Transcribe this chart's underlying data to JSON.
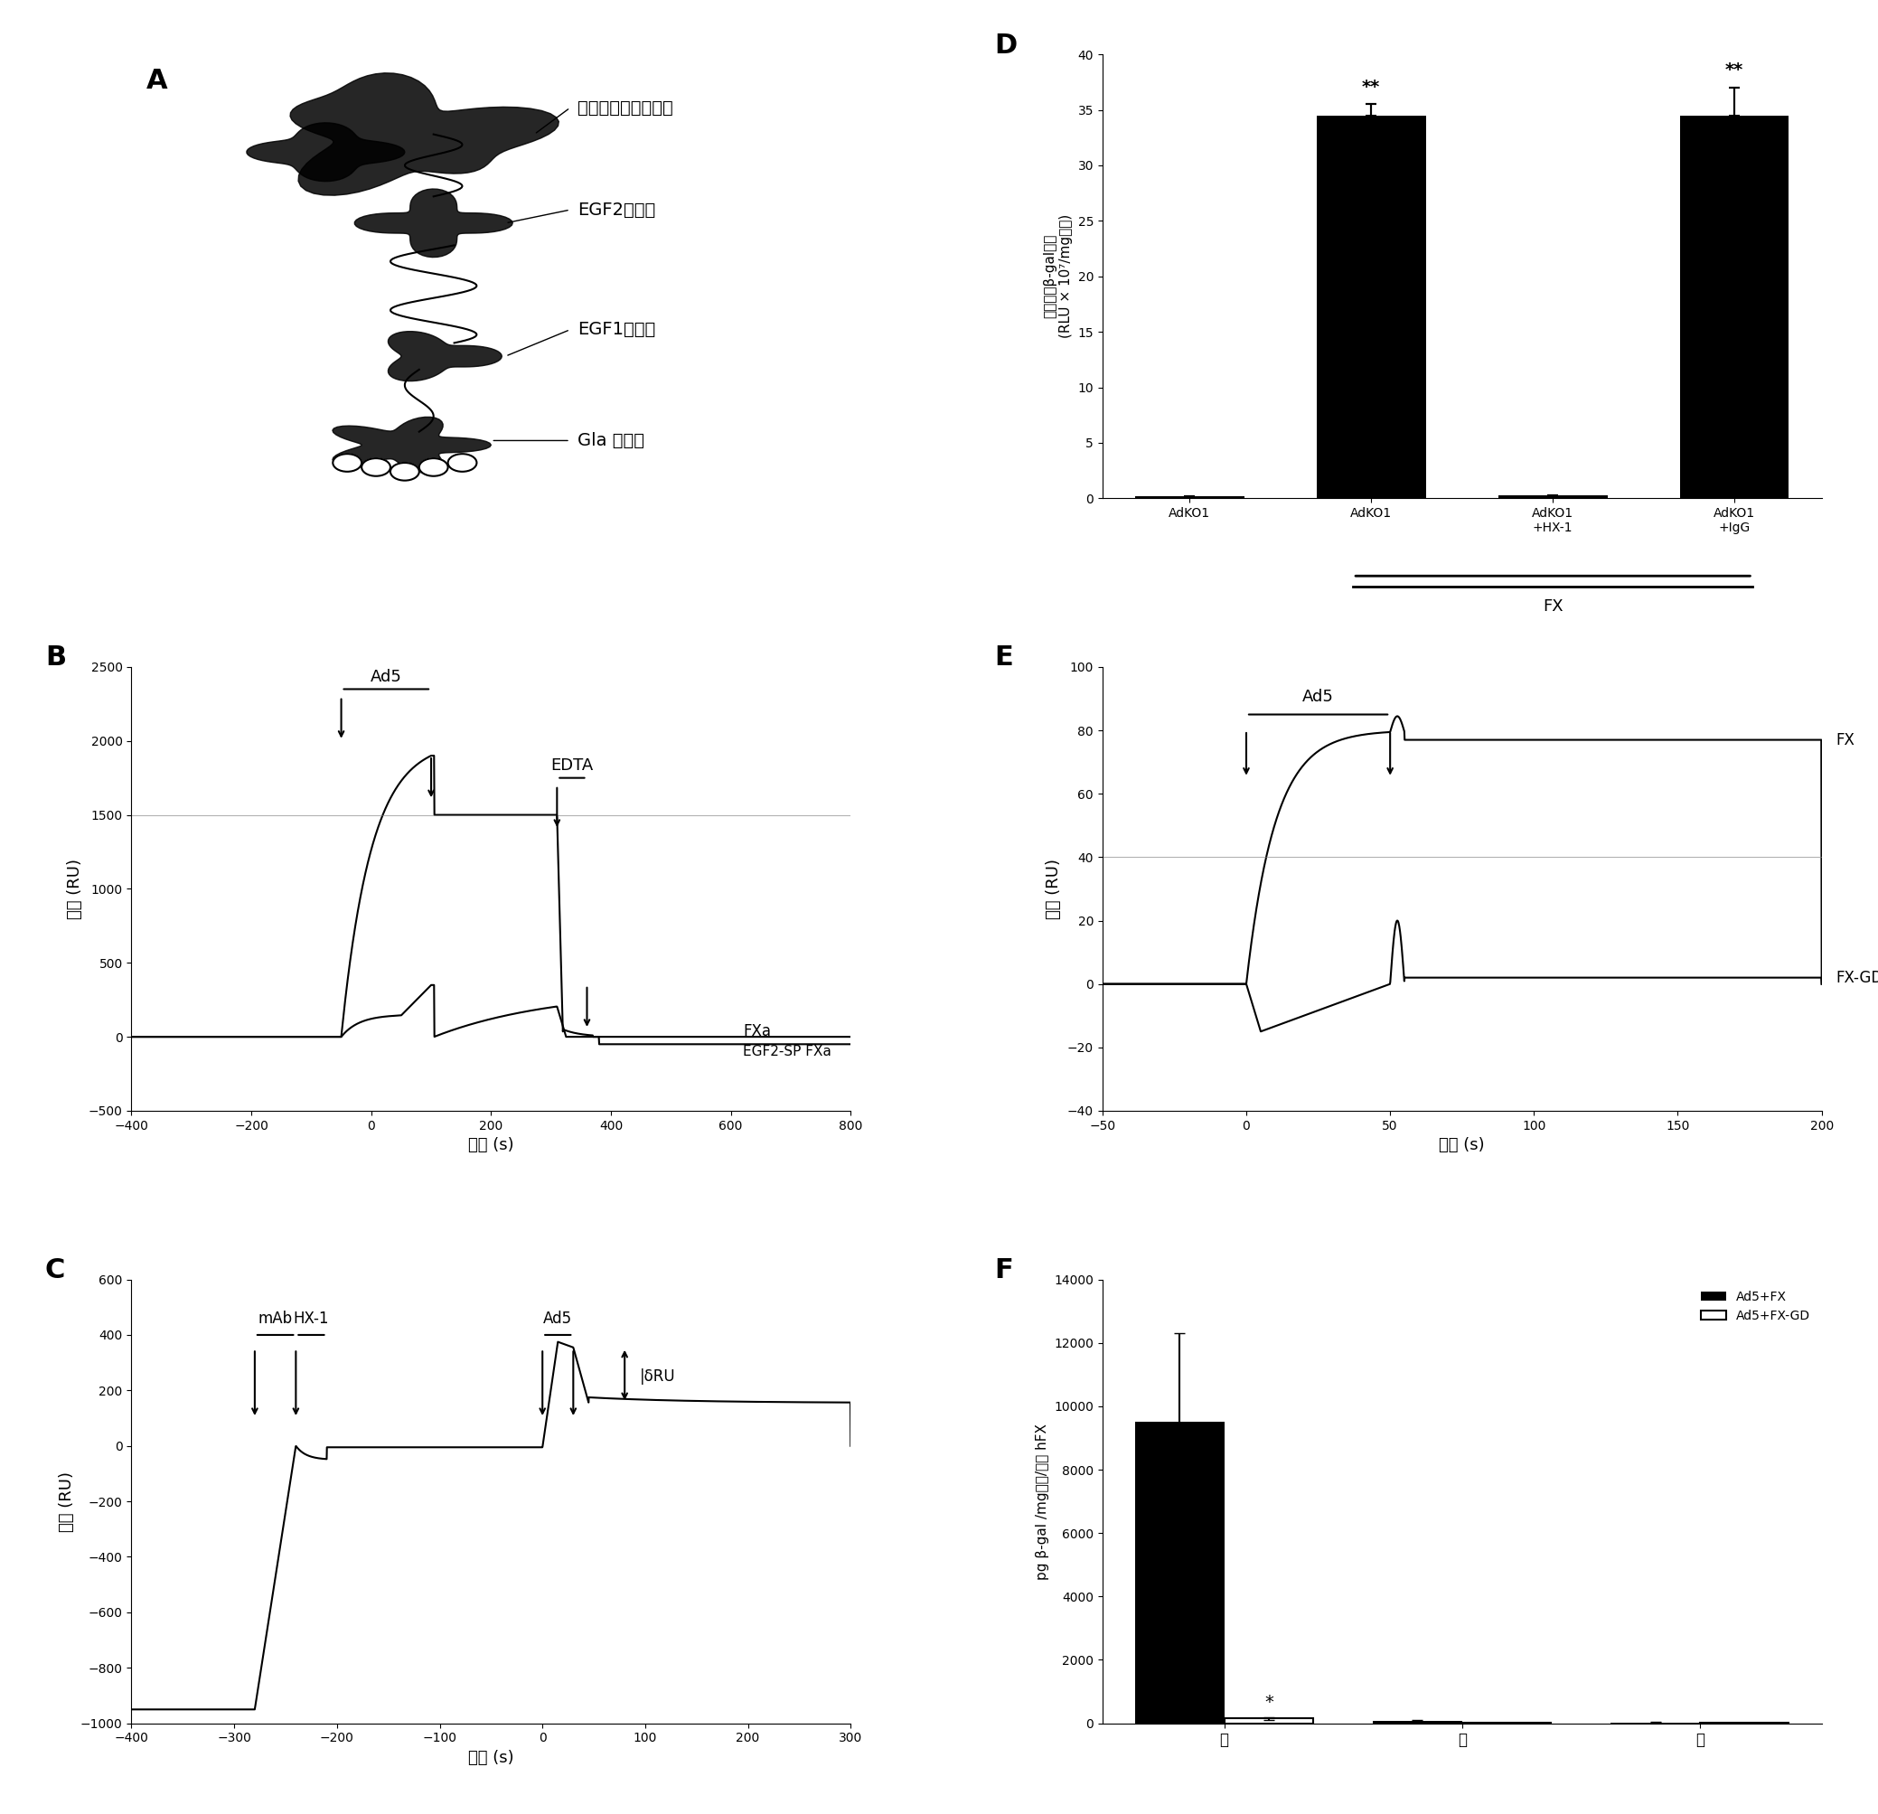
{
  "panel_A": {
    "label": "A",
    "labels": [
      "丝氨酸蛋白酶结构域",
      "EGF2结构域",
      "EGF1结构域",
      "Gla 结构域"
    ]
  },
  "panel_B": {
    "label": "B",
    "xlabel": "时间 (s)",
    "ylabel": "响应 (RU)",
    "xlim": [
      -400,
      800
    ],
    "ylim": [
      -500,
      2500
    ],
    "xticks": [
      -400,
      -200,
      0,
      200,
      400,
      600,
      800
    ],
    "yticks": [
      -500,
      0,
      500,
      1000,
      1500,
      2000,
      2500
    ],
    "hline_y": 1500,
    "Ad5_x1": -50,
    "Ad5_x2": 100,
    "EDTA_x1": 310,
    "EDTA_x2": 360,
    "label_FXa": "FXa",
    "label_EGF2": "EGF2-SP FXa",
    "arrow_Ad5_1": -50,
    "arrow_Ad5_2": 100,
    "arrow_EDTA_1": 310,
    "arrow_EDTA_2": 360
  },
  "panel_C": {
    "label": "C",
    "xlabel": "时间 (s)",
    "ylabel": "响应 (RU)",
    "xlim": [
      -400,
      300
    ],
    "ylim": [
      -1000,
      600
    ],
    "xticks": [
      -400,
      -300,
      -200,
      -100,
      0,
      100,
      200,
      300
    ],
    "yticks": [
      -1000,
      -800,
      -600,
      -400,
      -200,
      0,
      200,
      400,
      600
    ],
    "label_dRU": "|δRU",
    "mAb_x1": -280,
    "mAb_x2": -240,
    "HX1_x1": -240,
    "HX1_x2": -220,
    "Ad5_x1": 0,
    "Ad5_x2": 30
  },
  "panel_D": {
    "label": "D",
    "xlabel": "",
    "ylabel": "标准化的β-gal表达\n(RLU × 10⁷/mg蛋白)",
    "categories": [
      "AdKO1",
      "AdKO1",
      "AdKO1\n+HX-1",
      "AdKO1\n+IgG"
    ],
    "values": [
      0.2,
      34.5,
      0.3,
      34.5
    ],
    "errors": [
      0.0,
      1.0,
      0.0,
      2.5
    ],
    "ylim": [
      0,
      40
    ],
    "yticks": [
      0,
      5,
      10,
      15,
      20,
      25,
      30,
      35,
      40
    ],
    "significance": [
      "",
      "**",
      "",
      "**"
    ],
    "FX_label": "FX",
    "FX_line_start": 1,
    "FX_line_end": 3
  },
  "panel_E": {
    "label": "E",
    "xlabel": "时间 (s)",
    "ylabel": "响应 (RU)",
    "xlim": [
      -50,
      200
    ],
    "ylim": [
      -40,
      100
    ],
    "xticks": [
      -50,
      0,
      50,
      100,
      150,
      200
    ],
    "yticks": [
      -40,
      -20,
      0,
      20,
      40,
      60,
      80,
      100
    ],
    "hline_y": 40,
    "Ad5_x1": 0,
    "Ad5_x2": 50,
    "label_FX": "FX",
    "label_FXGD": "FX-GD"
  },
  "panel_F": {
    "label": "F",
    "xlabel": "",
    "ylabel": "pg β-gal /mg蛋白/单元 hFX",
    "categories": [
      "肝",
      "肺",
      "脾"
    ],
    "values_Ad5FX": [
      9500,
      80,
      30
    ],
    "errors_Ad5FX": [
      2800,
      30,
      10
    ],
    "values_Ad5FXGD": [
      150,
      10,
      5
    ],
    "errors_Ad5FXGD": [
      50,
      5,
      3
    ],
    "ylim": [
      0,
      14000
    ],
    "yticks": [
      0,
      2000,
      4000,
      6000,
      8000,
      10000,
      12000,
      14000
    ],
    "legend_Ad5FX": "Ad5+FX",
    "legend_Ad5FXGD": "Ad5+FX-GD",
    "significance_liver": "*"
  }
}
